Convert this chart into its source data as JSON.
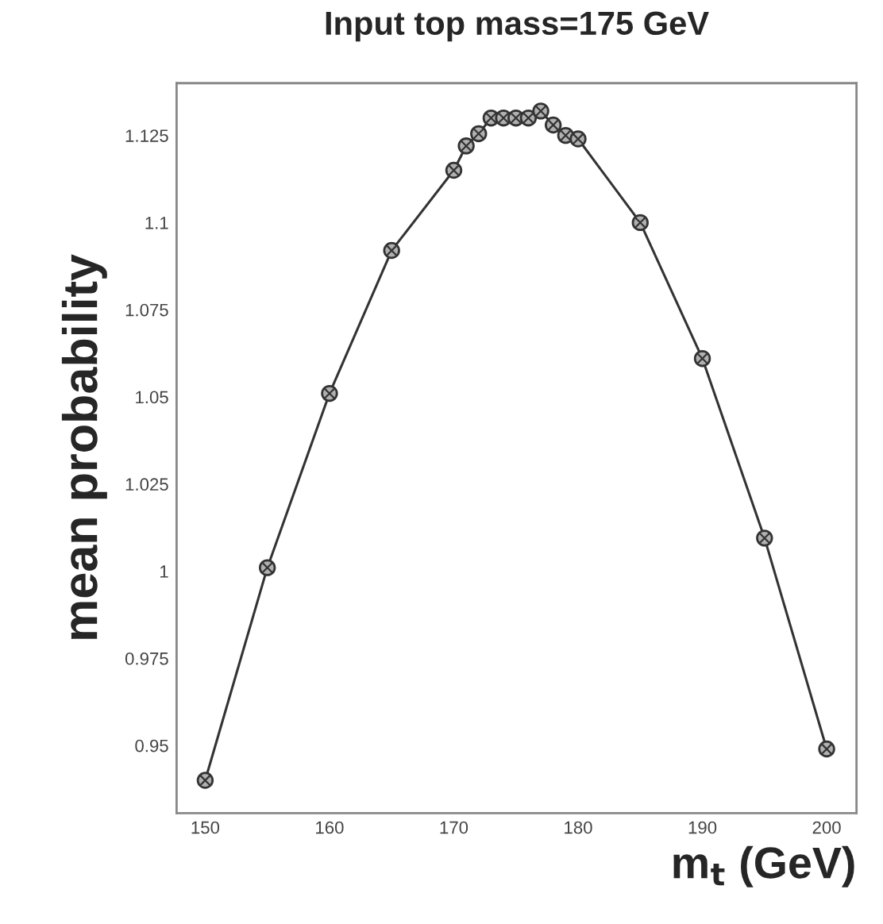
{
  "chart_data": {
    "type": "line",
    "title": "Input top mass=175 GeV",
    "xlabel": "m$_{t}$ (GeV)",
    "ylabel": "mean probability",
    "x": [
      150,
      155,
      160,
      165,
      170,
      171,
      172,
      173,
      174,
      175,
      176,
      177,
      178,
      179,
      180,
      185,
      190,
      195,
      200
    ],
    "series": [
      {
        "color": "#333333",
        "values": [
          0.94,
          1.001,
          1.051,
          1.092,
          1.115,
          1.122,
          1.1255,
          1.13,
          1.13,
          1.13,
          1.13,
          1.132,
          1.128,
          1.125,
          1.124,
          1.1,
          1.061,
          1.0095,
          0.949
        ]
      }
    ],
    "xlim": [
      147.7,
      202.4
    ],
    "ylim": [
      0.9306,
      1.14
    ],
    "xticks": [
      150,
      160,
      170,
      180,
      190,
      200
    ],
    "yticks": [
      0.95,
      0.975,
      1,
      1.025,
      1.05,
      1.075,
      1.1,
      1.125
    ],
    "marker": "circle",
    "line_style": "solid",
    "grid": false,
    "legend": false
  }
}
